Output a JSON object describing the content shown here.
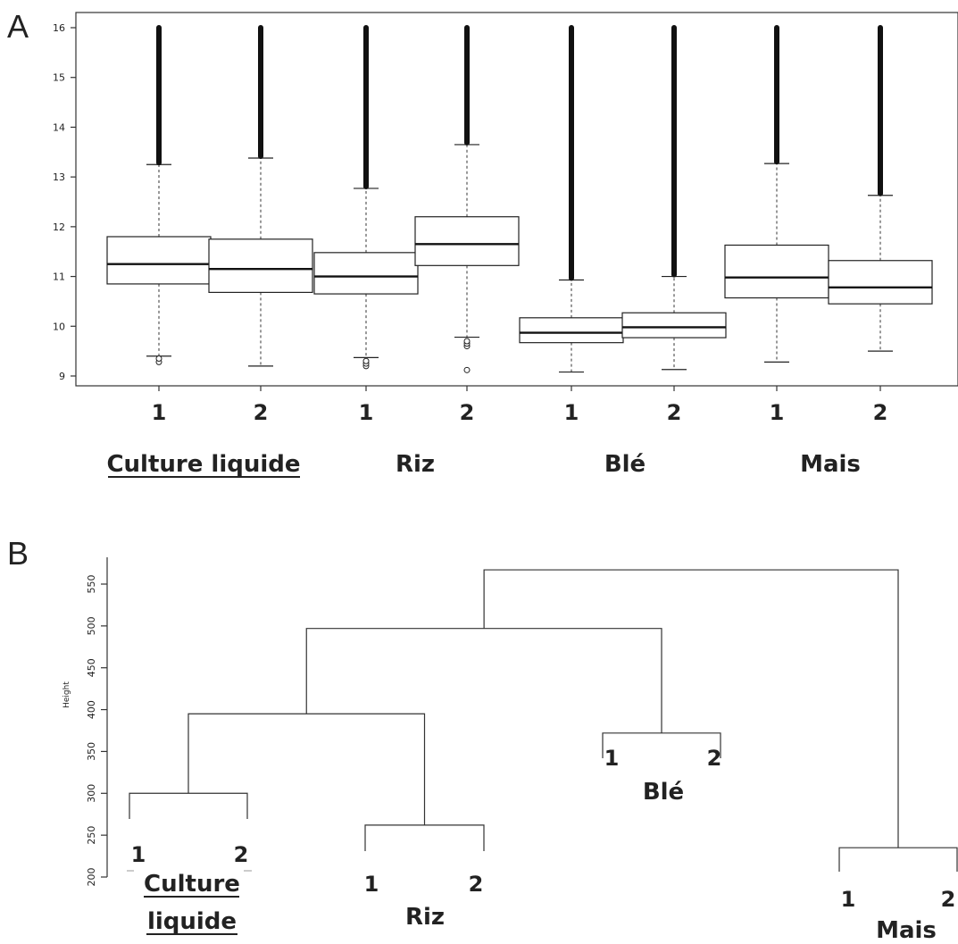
{
  "chart_data": [
    {
      "type": "boxplot",
      "panel": "A",
      "ylim": [
        9,
        16
      ],
      "yticks": [
        9,
        10,
        11,
        12,
        13,
        14,
        15,
        16
      ],
      "groups": [
        {
          "name": "Culture liquide",
          "underline": true,
          "replicates": [
            {
              "label": "1",
              "q1": 10.85,
              "median": 11.25,
              "q3": 11.8,
              "whisker_low": 9.4,
              "whisker_high": 13.25,
              "outlier_high_max": 16,
              "outliers_low": [
                9.28,
                9.35
              ]
            },
            {
              "label": "2",
              "q1": 10.68,
              "median": 11.15,
              "q3": 11.75,
              "whisker_low": 9.2,
              "whisker_high": 13.38,
              "outlier_high_max": 16,
              "outliers_low": []
            }
          ]
        },
        {
          "name": "Riz",
          "underline": false,
          "replicates": [
            {
              "label": "1",
              "q1": 10.65,
              "median": 11.0,
              "q3": 11.48,
              "whisker_low": 9.37,
              "whisker_high": 12.77,
              "outlier_high_max": 16,
              "outliers_low": [
                9.2,
                9.25,
                9.3
              ]
            },
            {
              "label": "2",
              "q1": 11.22,
              "median": 11.65,
              "q3": 12.2,
              "whisker_low": 9.78,
              "whisker_high": 13.65,
              "outlier_high_max": 16,
              "outliers_low": [
                9.12,
                9.6,
                9.65,
                9.7
              ]
            }
          ]
        },
        {
          "name": "Blé",
          "underline": false,
          "replicates": [
            {
              "label": "1",
              "q1": 9.67,
              "median": 9.87,
              "q3": 10.17,
              "whisker_low": 9.08,
              "whisker_high": 10.93,
              "outlier_high_max": 16,
              "outliers_low": []
            },
            {
              "label": "2",
              "q1": 9.77,
              "median": 9.98,
              "q3": 10.27,
              "whisker_low": 9.13,
              "whisker_high": 11.0,
              "outlier_high_max": 16,
              "outliers_low": []
            }
          ]
        },
        {
          "name": "Mais",
          "underline": false,
          "replicates": [
            {
              "label": "1",
              "q1": 10.57,
              "median": 10.98,
              "q3": 11.63,
              "whisker_low": 9.28,
              "whisker_high": 13.27,
              "outlier_high_max": 16,
              "outliers_low": []
            },
            {
              "label": "2",
              "q1": 10.45,
              "median": 10.78,
              "q3": 11.32,
              "whisker_low": 9.5,
              "whisker_high": 12.63,
              "outlier_high_max": 16,
              "outliers_low": []
            }
          ]
        }
      ]
    },
    {
      "type": "dendrogram",
      "panel": "B",
      "ylabel": "Height",
      "ylim": [
        200,
        550
      ],
      "yticks": [
        200,
        250,
        300,
        350,
        400,
        450,
        500,
        550
      ],
      "groups": [
        {
          "name": "Culture liquide",
          "underline": true,
          "merge_height": 300
        },
        {
          "name": "Riz",
          "underline": false,
          "merge_height": 262
        },
        {
          "name": "Blé",
          "underline": false,
          "merge_height": 372
        },
        {
          "name": "Mais",
          "underline": false,
          "merge_height": 235
        }
      ],
      "merges": [
        {
          "left": "Culture liquide",
          "right": "Riz",
          "height": 395
        },
        {
          "left": "Culture liquide + Riz",
          "right": "Blé",
          "height": 497
        },
        {
          "left": "Culture liquide + Riz + Blé",
          "right": "Mais",
          "height": 567
        }
      ]
    }
  ],
  "labels": {
    "panel_a": "A",
    "panel_b": "B",
    "culture_liquide": "Culture liquide",
    "culture": "Culture",
    "liquide": "liquide",
    "riz": "Riz",
    "ble": "Blé",
    "mais": "Mais",
    "rep1": "1",
    "rep2": "2",
    "height": "Height"
  }
}
